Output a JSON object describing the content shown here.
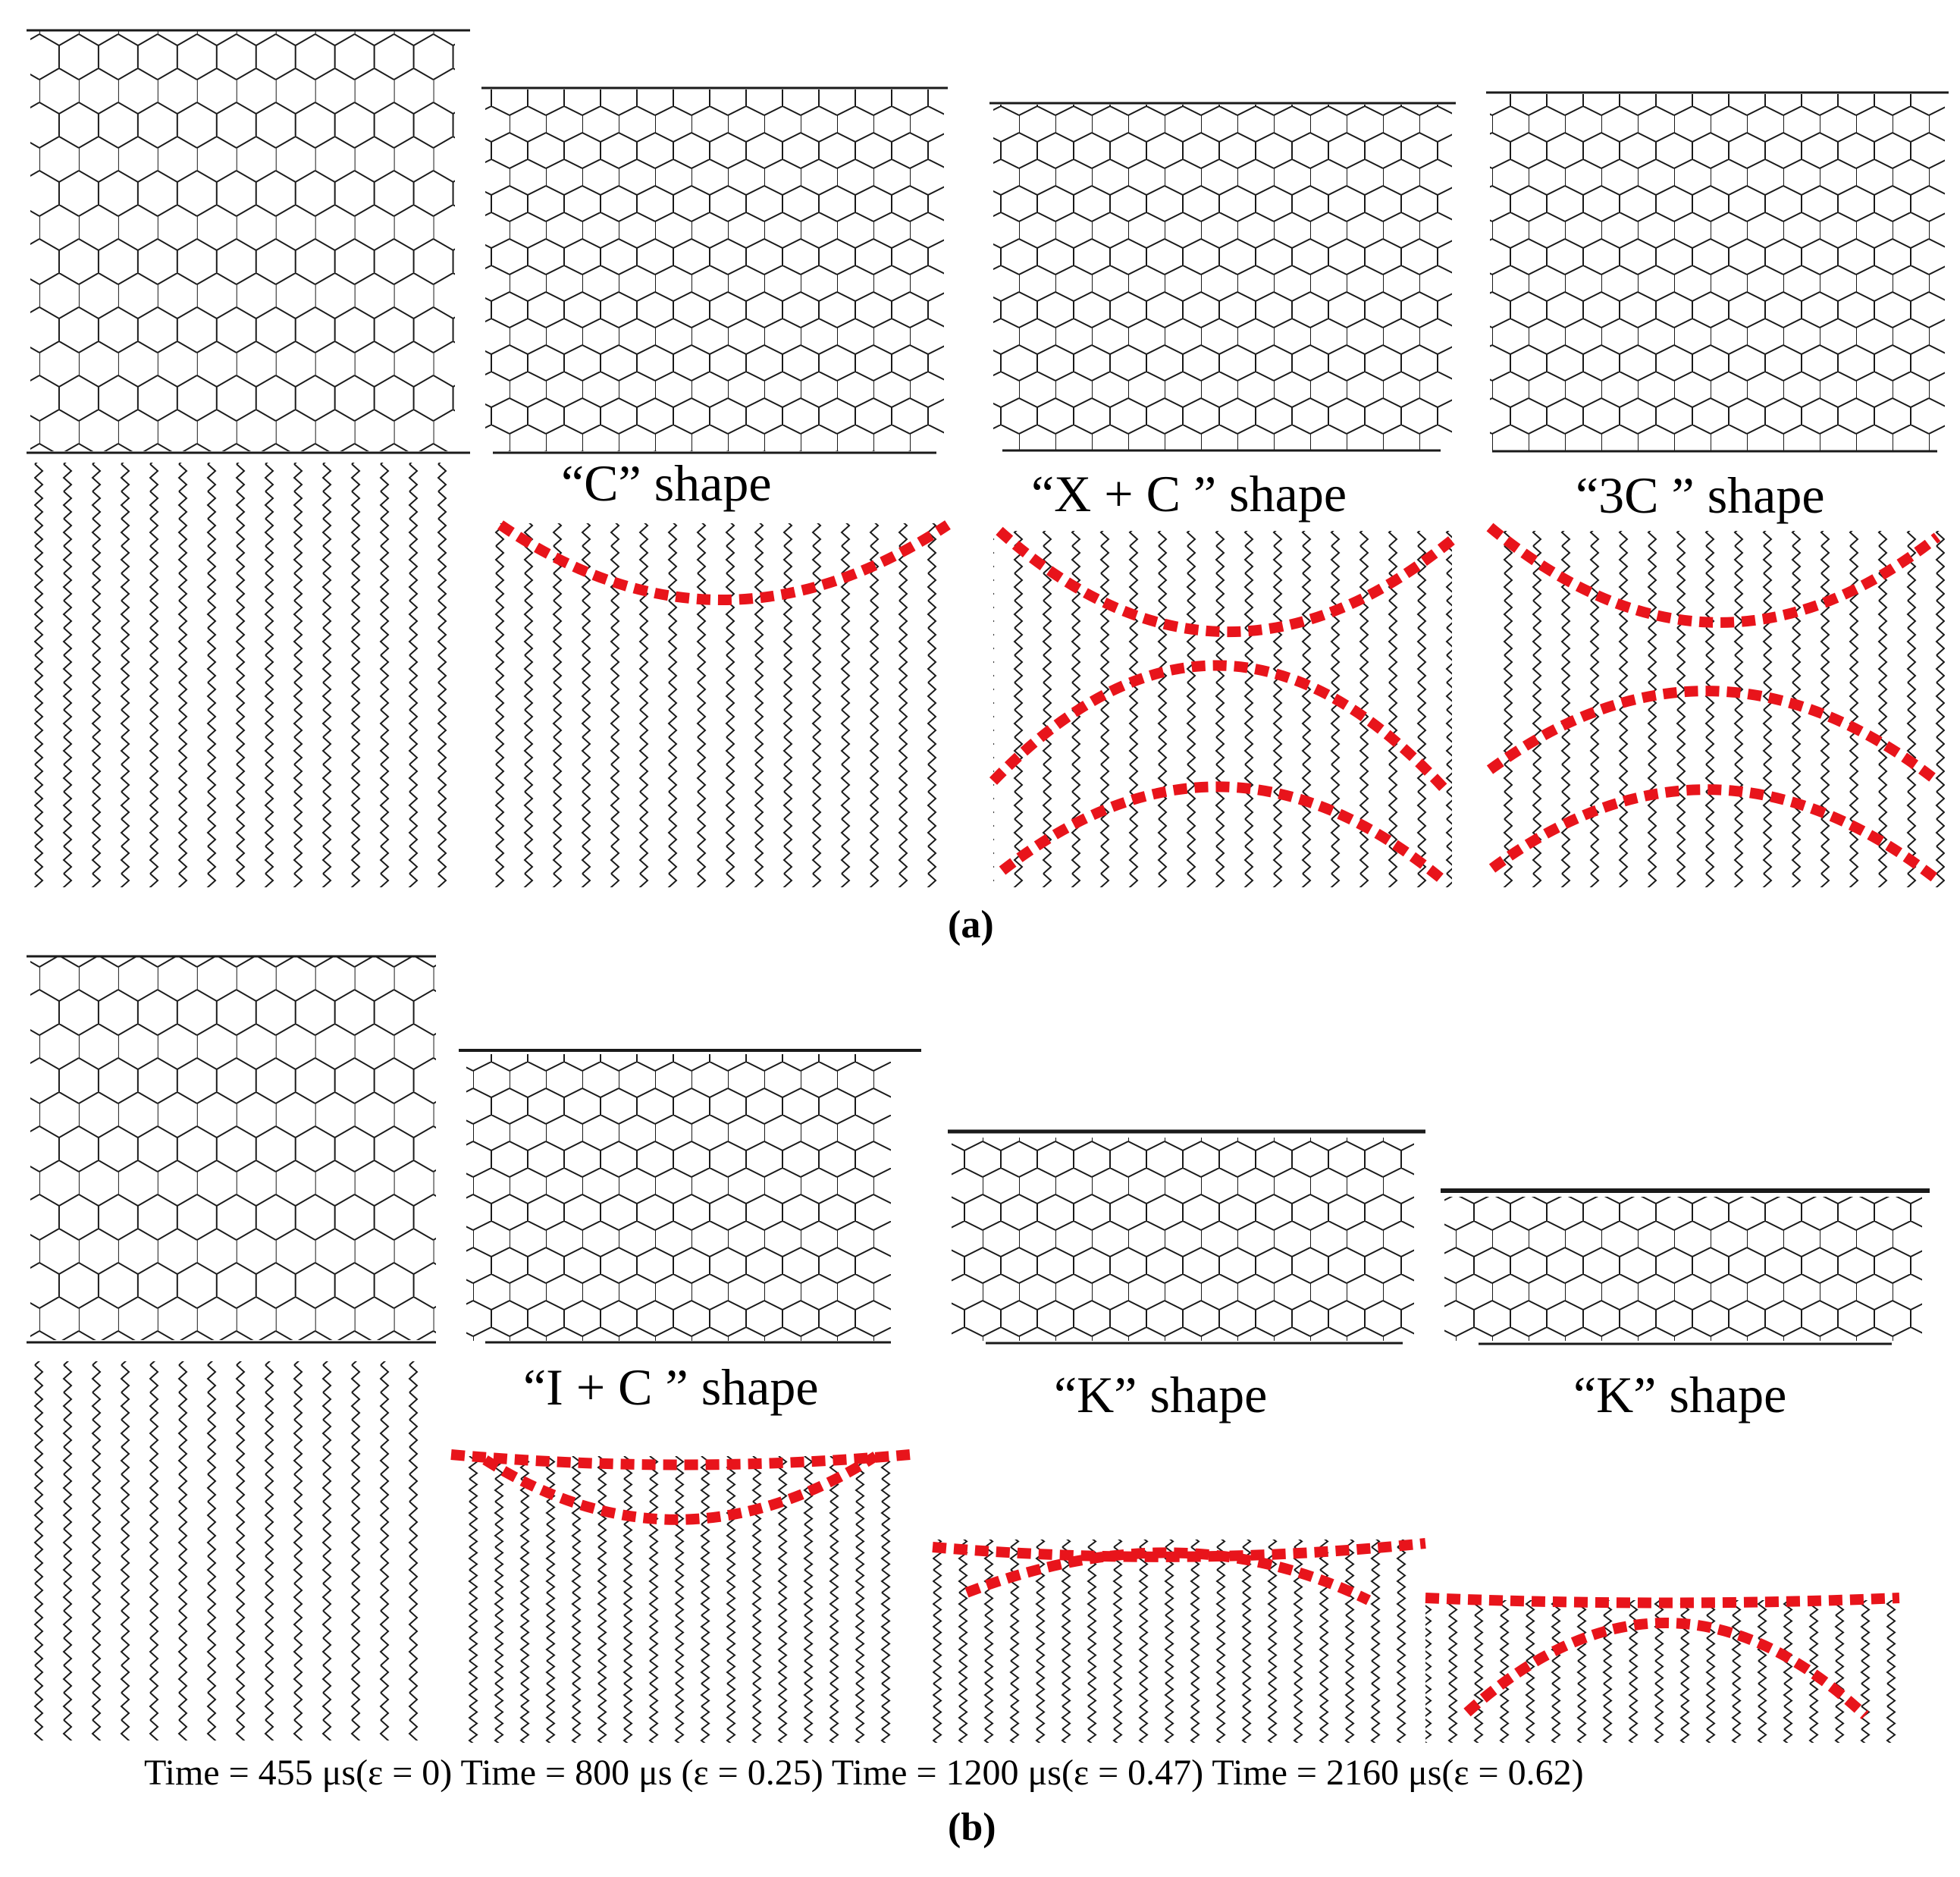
{
  "figure": {
    "part_a": {
      "label": "(a)",
      "shapes": [
        "“C”  shape",
        "“X + C ”  shape",
        "“3C ”  shape"
      ]
    },
    "part_b": {
      "label": "(b)",
      "shapes": [
        "“I + C ”  shape",
        "“K”  shape",
        "“K”  shape"
      ]
    },
    "timeline": [
      "Time = 455 μs(ε  = 0)",
      "Time = 800 μs (ε  = 0.25)",
      "Time = 1200 μs(ε  = 0.47)",
      "Time = 2160 μs(ε  = 0.62)"
    ],
    "colors": {
      "lattice": "#1a1a1a",
      "highlight": "#e8141b"
    }
  }
}
